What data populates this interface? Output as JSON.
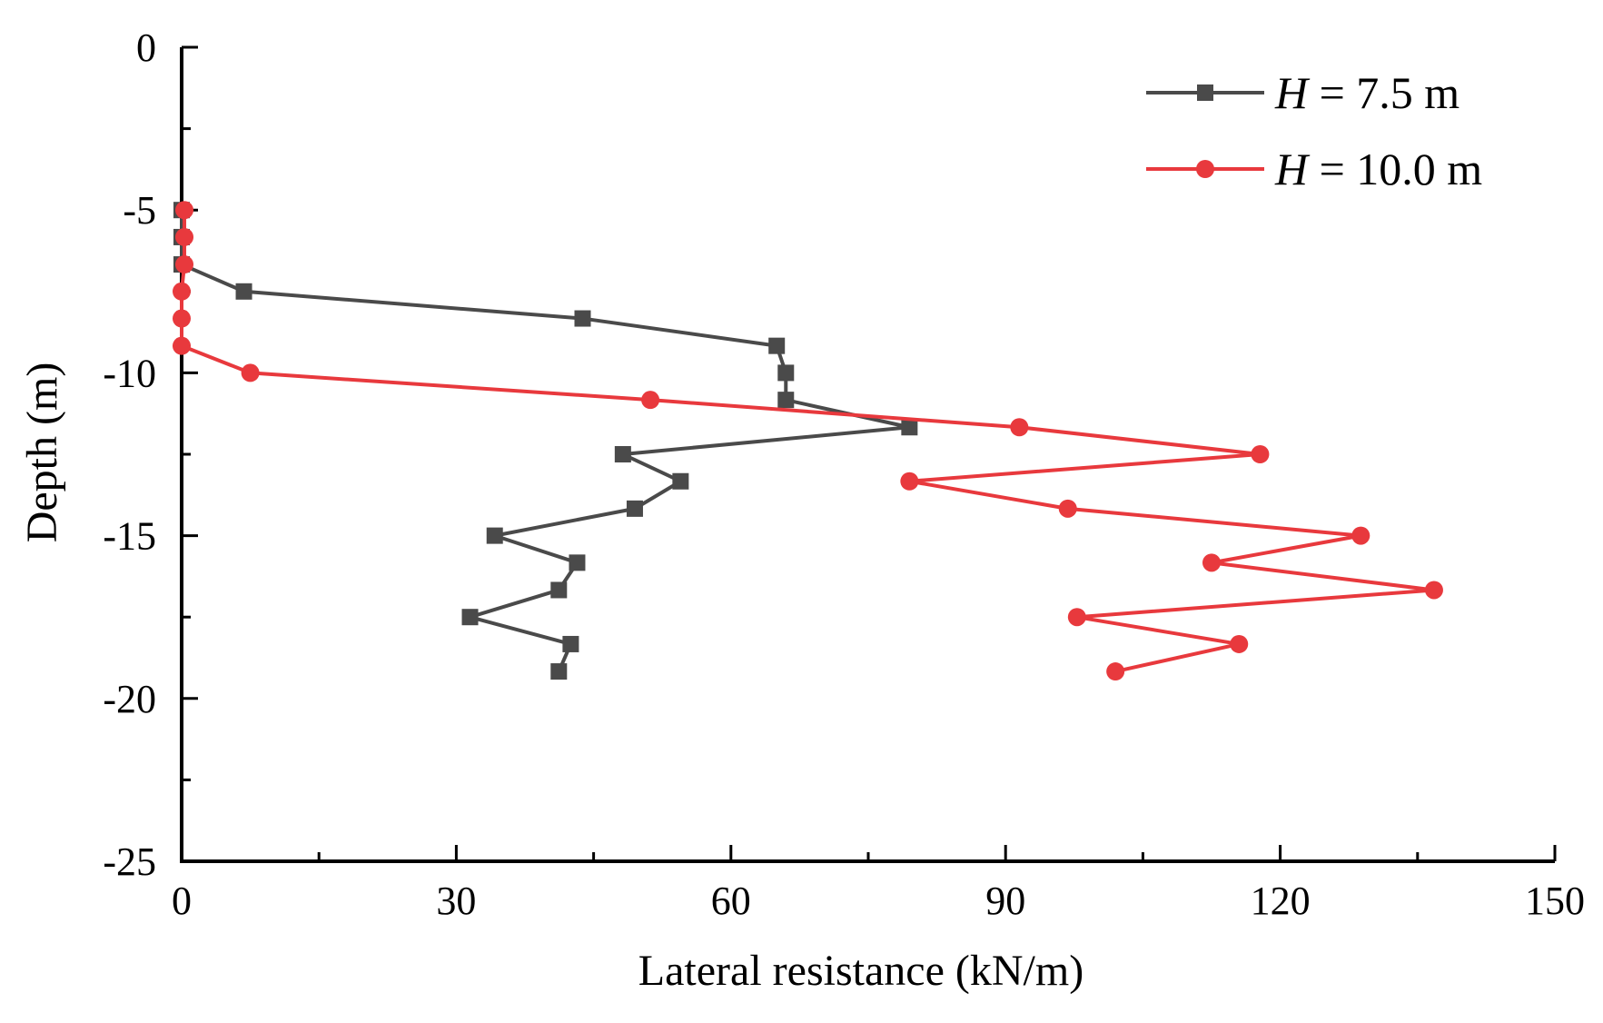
{
  "chart_data": {
    "type": "line",
    "title": "",
    "xlabel": "Lateral resistance (kN/m)",
    "ylabel": "Depth (m)",
    "xlim": [
      0,
      150
    ],
    "ylim": [
      -25,
      0
    ],
    "xticks": [
      0,
      30,
      60,
      90,
      120,
      150
    ],
    "xtick_labels": [
      "0",
      "30",
      "60",
      "90",
      "120",
      "150"
    ],
    "yticks": [
      0,
      -5,
      -10,
      -15,
      -20,
      -25
    ],
    "ytick_labels": [
      "0",
      "-5",
      "-10",
      "-15",
      "-20",
      "-25"
    ],
    "grid": false,
    "legend_position": "top-right",
    "series": [
      {
        "name": "H = 7.5 m",
        "legend_var": "H",
        "legend_rest": " = 7.5 m",
        "marker": "square",
        "color": "#4a4a4a",
        "points": [
          {
            "x": 0.0,
            "y": -5.0
          },
          {
            "x": 0.0,
            "y": -5.83
          },
          {
            "x": 0.0,
            "y": -6.67
          },
          {
            "x": 6.8,
            "y": -7.5
          },
          {
            "x": 43.8,
            "y": -8.33
          },
          {
            "x": 65.0,
            "y": -9.17
          },
          {
            "x": 66.0,
            "y": -10.0
          },
          {
            "x": 66.0,
            "y": -10.83
          },
          {
            "x": 79.5,
            "y": -11.67
          },
          {
            "x": 48.2,
            "y": -12.5
          },
          {
            "x": 54.5,
            "y": -13.33
          },
          {
            "x": 49.5,
            "y": -14.17
          },
          {
            "x": 34.2,
            "y": -15.0
          },
          {
            "x": 43.2,
            "y": -15.83
          },
          {
            "x": 41.2,
            "y": -16.67
          },
          {
            "x": 31.5,
            "y": -17.5
          },
          {
            "x": 42.5,
            "y": -18.33
          },
          {
            "x": 41.2,
            "y": -19.17
          }
        ]
      },
      {
        "name": "H = 10.0 m",
        "legend_var": "H",
        "legend_rest": " = 10.0 m",
        "marker": "circle",
        "color": "#e8393d",
        "points": [
          {
            "x": 0.3,
            "y": -5.0
          },
          {
            "x": 0.3,
            "y": -5.83
          },
          {
            "x": 0.3,
            "y": -6.67
          },
          {
            "x": 0.0,
            "y": -7.5
          },
          {
            "x": 0.0,
            "y": -8.33
          },
          {
            "x": 0.0,
            "y": -9.17
          },
          {
            "x": 7.5,
            "y": -10.0
          },
          {
            "x": 51.2,
            "y": -10.83
          },
          {
            "x": 91.5,
            "y": -11.67
          },
          {
            "x": 117.8,
            "y": -12.5
          },
          {
            "x": 79.5,
            "y": -13.33
          },
          {
            "x": 96.8,
            "y": -14.17
          },
          {
            "x": 128.8,
            "y": -15.0
          },
          {
            "x": 112.5,
            "y": -15.83
          },
          {
            "x": 136.8,
            "y": -16.67
          },
          {
            "x": 97.8,
            "y": -17.5
          },
          {
            "x": 115.5,
            "y": -18.33
          },
          {
            "x": 102.0,
            "y": -19.17
          }
        ]
      }
    ]
  }
}
